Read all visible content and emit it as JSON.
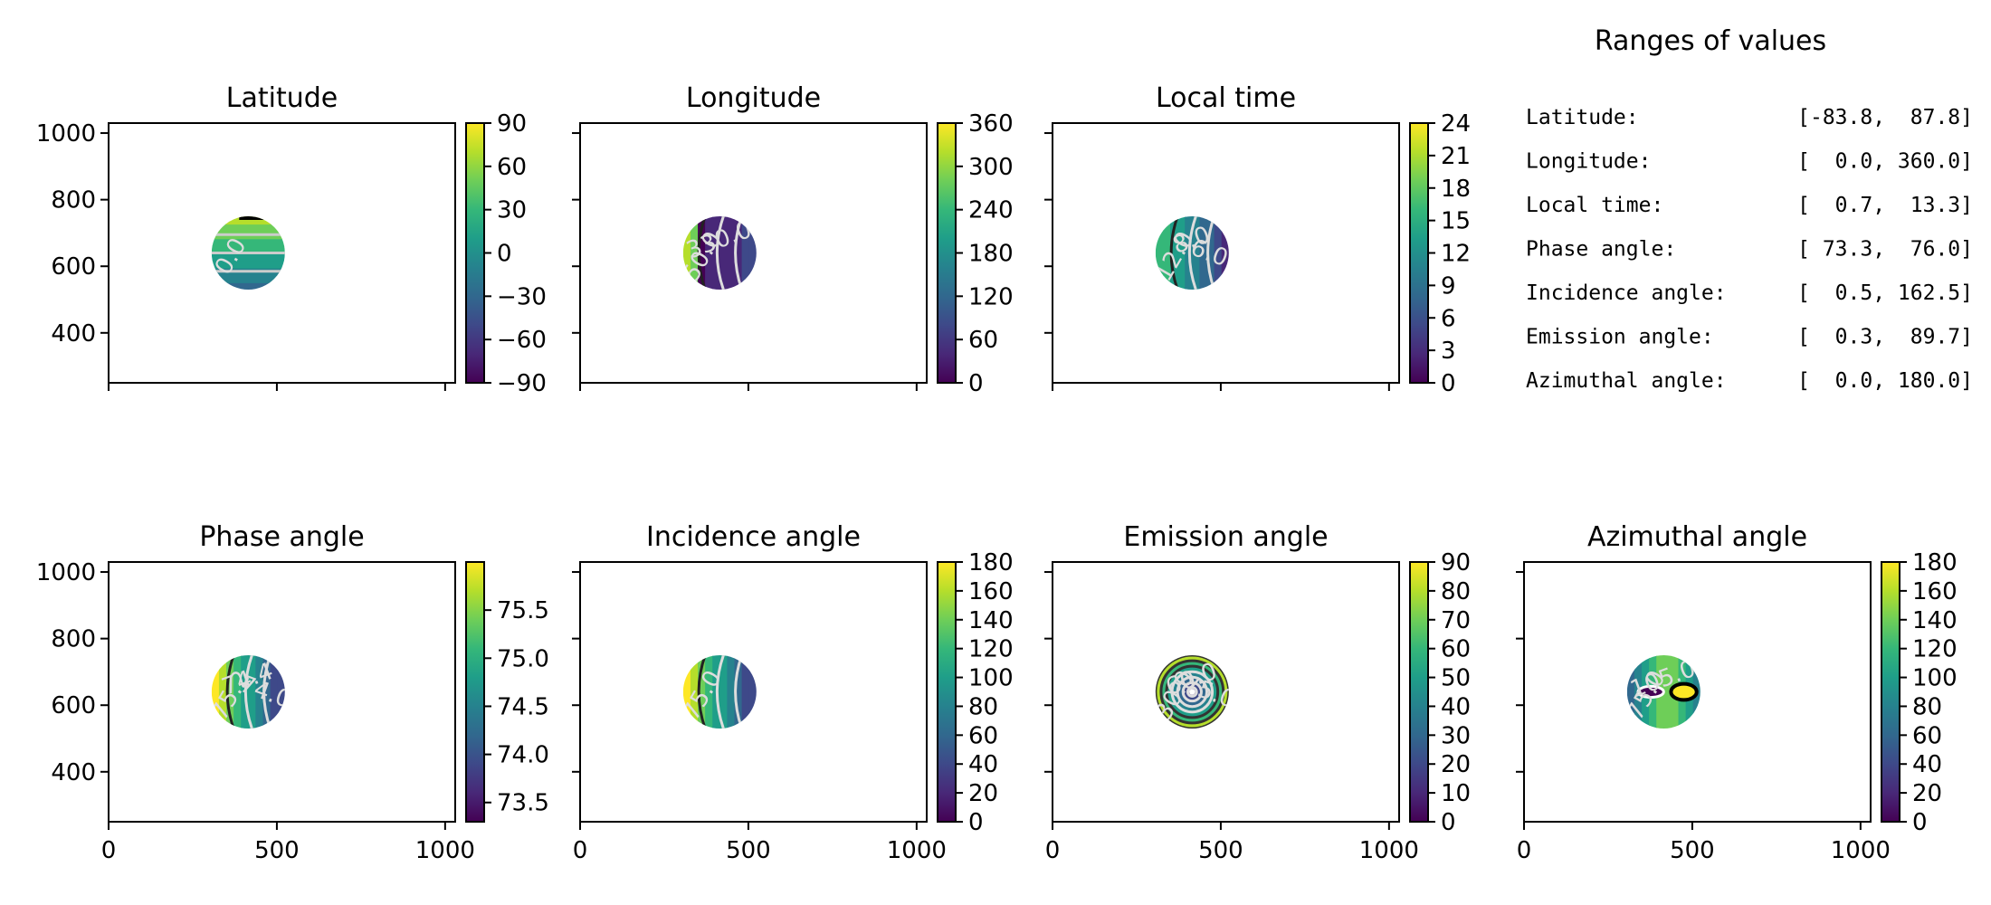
{
  "figure": {
    "ranges_title": "Ranges of values",
    "ranges": [
      {
        "label": "Latitude:",
        "value": "[-83.8,  87.8]"
      },
      {
        "label": "Longitude:",
        "value": "[  0.0, 360.0]"
      },
      {
        "label": "Local time:",
        "value": "[  0.7,  13.3]"
      },
      {
        "label": "Phase angle:",
        "value": "[ 73.3,  76.0]"
      },
      {
        "label": "Incidence angle:",
        "value": "[  0.5, 162.5]"
      },
      {
        "label": "Emission angle:",
        "value": "[  0.3,  89.7]"
      },
      {
        "label": "Azimuthal angle:",
        "value": "[  0.0, 180.0]"
      }
    ],
    "colormap": "viridis",
    "colors": {
      "viridis": [
        "#440154",
        "#482878",
        "#3e4989",
        "#31688e",
        "#26828e",
        "#1f9e89",
        "#35b779",
        "#6ece58",
        "#b5de2b",
        "#fde725"
      ]
    }
  },
  "chart_data": [
    {
      "type": "heatmap",
      "title": "Latitude",
      "xlim": [
        0,
        1030
      ],
      "ylim": [
        250,
        1030
      ],
      "x_ticks": [
        "0",
        "500",
        "1000"
      ],
      "y_ticks": [
        "400",
        "600",
        "800",
        "1000"
      ],
      "show_x_ticklabels": false,
      "show_y_ticklabels": true,
      "disc_center": [
        415,
        640
      ],
      "disc_radius": 110,
      "pattern": "bands_vertical",
      "colorbar": {
        "range": [
          -90,
          90
        ],
        "ticks": [
          "90",
          "60",
          "30",
          "0",
          "−30",
          "−60",
          "−90"
        ]
      },
      "contour_labels": [
        "0.0"
      ]
    },
    {
      "type": "heatmap",
      "title": "Longitude",
      "xlim": [
        0,
        1030
      ],
      "ylim": [
        250,
        1030
      ],
      "x_ticks": [
        "0",
        "500",
        "1000"
      ],
      "y_ticks": [
        "400",
        "600",
        "800",
        "1000"
      ],
      "show_x_ticklabels": false,
      "show_y_ticklabels": false,
      "disc_center": [
        415,
        640
      ],
      "disc_radius": 110,
      "pattern": "bands_horizontal_wrap",
      "colorbar": {
        "range": [
          0,
          360
        ],
        "ticks": [
          "360",
          "300",
          "240",
          "180",
          "120",
          "60",
          "0"
        ]
      },
      "contour_labels": [
        "50.0",
        "330.0"
      ]
    },
    {
      "type": "heatmap",
      "title": "Local time",
      "xlim": [
        0,
        1030
      ],
      "ylim": [
        250,
        1030
      ],
      "x_ticks": [
        "0",
        "500",
        "1000"
      ],
      "y_ticks": [
        "400",
        "600",
        "800",
        "1000"
      ],
      "show_x_ticklabels": false,
      "show_y_ticklabels": false,
      "disc_center": [
        415,
        640
      ],
      "disc_radius": 110,
      "pattern": "bands_horizontal",
      "colorbar": {
        "range": [
          0,
          24
        ],
        "ticks": [
          "24",
          "21",
          "18",
          "15",
          "12",
          "9",
          "6",
          "3",
          "0"
        ]
      },
      "contour_labels": [
        "12.0",
        "8.0",
        "6.0"
      ]
    },
    {
      "type": "heatmap",
      "title": "Phase angle",
      "xlim": [
        0,
        1030
      ],
      "ylim": [
        250,
        1030
      ],
      "x_ticks": [
        "0",
        "500",
        "1000"
      ],
      "y_ticks": [
        "400",
        "600",
        "800",
        "1000"
      ],
      "show_x_ticklabels": true,
      "show_y_ticklabels": true,
      "disc_center": [
        415,
        640
      ],
      "disc_radius": 110,
      "pattern": "bands_horizontal_rev",
      "colorbar": {
        "range": [
          73.3,
          76.0
        ],
        "ticks": [
          "75.5",
          "75.0",
          "74.5",
          "74.0",
          "73.5"
        ]
      },
      "contour_labels": [
        "75.2",
        "74.4",
        "74.0"
      ]
    },
    {
      "type": "heatmap",
      "title": "Incidence angle",
      "xlim": [
        0,
        1030
      ],
      "ylim": [
        250,
        1030
      ],
      "x_ticks": [
        "0",
        "500",
        "1000"
      ],
      "y_ticks": [
        "400",
        "600",
        "800",
        "1000"
      ],
      "show_x_ticklabels": true,
      "show_y_ticklabels": false,
      "disc_center": [
        415,
        640
      ],
      "disc_radius": 110,
      "pattern": "bands_horizontal_rev",
      "colorbar": {
        "range": [
          0,
          180
        ],
        "ticks": [
          "180",
          "160",
          "140",
          "120",
          "100",
          "80",
          "60",
          "40",
          "20",
          "0"
        ]
      },
      "contour_labels": [
        "75.0"
      ]
    },
    {
      "type": "heatmap",
      "title": "Emission angle",
      "xlim": [
        0,
        1030
      ],
      "ylim": [
        250,
        1030
      ],
      "x_ticks": [
        "0",
        "500",
        "1000"
      ],
      "y_ticks": [
        "400",
        "600",
        "800",
        "1000"
      ],
      "show_x_ticklabels": true,
      "show_y_ticklabels": false,
      "disc_center": [
        415,
        640
      ],
      "disc_radius": 110,
      "pattern": "radial",
      "colorbar": {
        "range": [
          0,
          90
        ],
        "ticks": [
          "90",
          "80",
          "70",
          "60",
          "50",
          "40",
          "30",
          "20",
          "10",
          "0"
        ]
      },
      "contour_labels": [
        "30.0",
        "60.0",
        "75.0"
      ]
    },
    {
      "type": "heatmap",
      "title": "Azimuthal angle",
      "xlim": [
        0,
        1030
      ],
      "ylim": [
        250,
        1030
      ],
      "x_ticks": [
        "0",
        "500",
        "1000"
      ],
      "y_ticks": [
        "400",
        "600",
        "800",
        "1000"
      ],
      "show_x_ticklabels": true,
      "show_y_ticklabels": false,
      "disc_center": [
        415,
        640
      ],
      "disc_radius": 110,
      "pattern": "azimuthal",
      "colorbar": {
        "range": [
          0,
          180
        ],
        "ticks": [
          "180",
          "160",
          "140",
          "120",
          "100",
          "80",
          "60",
          "40",
          "20",
          "0"
        ]
      },
      "contour_labels": [
        "75.0",
        "105.0"
      ]
    }
  ]
}
